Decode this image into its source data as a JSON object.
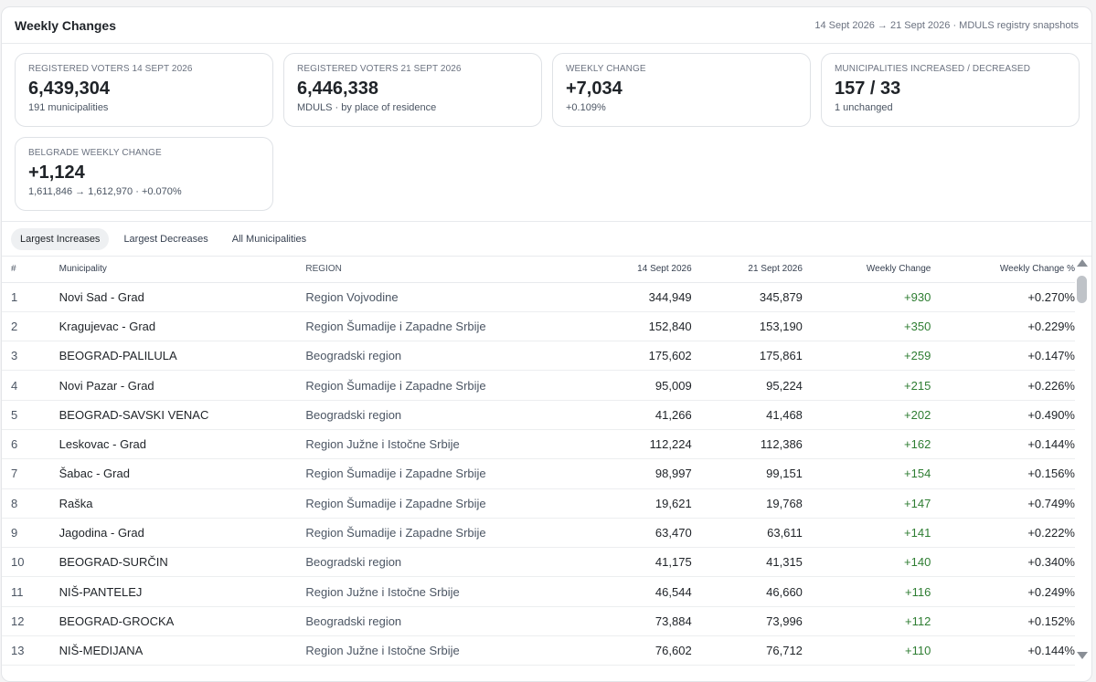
{
  "header": {
    "title": "Weekly Changes",
    "meta": "14 Sept 2026 → 21 Sept 2026 · MDULS registry snapshots"
  },
  "cards": [
    {
      "label": "REGISTERED VOTERS 14 SEPT 2026",
      "value": "6,439,304",
      "sub": "191 municipalities"
    },
    {
      "label": "REGISTERED VOTERS 21 SEPT 2026",
      "value": "6,446,338",
      "sub": "MDULS · by place of residence"
    },
    {
      "label": "WEEKLY CHANGE",
      "value": "+7,034",
      "sub": "+0.109%"
    },
    {
      "label": "MUNICIPALITIES INCREASED / DECREASED",
      "value": "157 / 33",
      "sub": "1 unchanged"
    },
    {
      "label": "BELGRADE WEEKLY CHANGE",
      "value": "+1,124",
      "sub": "1,611,846 → 1,612,970 · +0.070%"
    }
  ],
  "tabs": {
    "increases": "Largest Increases",
    "decreases": "Largest Decreases",
    "all": "All Municipalities"
  },
  "table": {
    "headers": {
      "rank": "#",
      "municipality": "Municipality",
      "region": "REGION",
      "date1": "14 Sept 2026",
      "date2": "21 Sept 2026",
      "weekly_change": "Weekly Change",
      "weekly_change_pct": "Weekly Change %"
    },
    "rows": [
      {
        "rank": "1",
        "municipality": "Novi Sad - Grad",
        "region": "Region Vojvodine",
        "d1": "344,949",
        "d2": "345,879",
        "wc": "+930",
        "wp": "+0.270%"
      },
      {
        "rank": "2",
        "municipality": "Kragujevac - Grad",
        "region": "Region Šumadije i Zapadne Srbije",
        "d1": "152,840",
        "d2": "153,190",
        "wc": "+350",
        "wp": "+0.229%"
      },
      {
        "rank": "3",
        "municipality": "BEOGRAD-PALILULA",
        "region": "Beogradski region",
        "d1": "175,602",
        "d2": "175,861",
        "wc": "+259",
        "wp": "+0.147%"
      },
      {
        "rank": "4",
        "municipality": "Novi Pazar - Grad",
        "region": "Region Šumadije i Zapadne Srbije",
        "d1": "95,009",
        "d2": "95,224",
        "wc": "+215",
        "wp": "+0.226%"
      },
      {
        "rank": "5",
        "municipality": "BEOGRAD-SAVSKI VENAC",
        "region": "Beogradski region",
        "d1": "41,266",
        "d2": "41,468",
        "wc": "+202",
        "wp": "+0.490%"
      },
      {
        "rank": "6",
        "municipality": "Leskovac - Grad",
        "region": "Region Južne i Istočne Srbije",
        "d1": "112,224",
        "d2": "112,386",
        "wc": "+162",
        "wp": "+0.144%"
      },
      {
        "rank": "7",
        "municipality": "Šabac - Grad",
        "region": "Region Šumadije i Zapadne Srbije",
        "d1": "98,997",
        "d2": "99,151",
        "wc": "+154",
        "wp": "+0.156%"
      },
      {
        "rank": "8",
        "municipality": "Raška",
        "region": "Region Šumadije i Zapadne Srbije",
        "d1": "19,621",
        "d2": "19,768",
        "wc": "+147",
        "wp": "+0.749%"
      },
      {
        "rank": "9",
        "municipality": "Jagodina - Grad",
        "region": "Region Šumadije i Zapadne Srbije",
        "d1": "63,470",
        "d2": "63,611",
        "wc": "+141",
        "wp": "+0.222%"
      },
      {
        "rank": "10",
        "municipality": "BEOGRAD-SURČIN",
        "region": "Beogradski region",
        "d1": "41,175",
        "d2": "41,315",
        "wc": "+140",
        "wp": "+0.340%"
      },
      {
        "rank": "11",
        "municipality": "NIŠ-PANTELEJ",
        "region": "Region Južne i Istočne Srbije",
        "d1": "46,544",
        "d2": "46,660",
        "wc": "+116",
        "wp": "+0.249%"
      },
      {
        "rank": "12",
        "municipality": "BEOGRAD-GROCKA",
        "region": "Beogradski region",
        "d1": "73,884",
        "d2": "73,996",
        "wc": "+112",
        "wp": "+0.152%"
      },
      {
        "rank": "13",
        "municipality": "NIŠ-MEDIJANA",
        "region": "Region Južne i Istočne Srbije",
        "d1": "76,602",
        "d2": "76,712",
        "wc": "+110",
        "wp": "+0.144%"
      }
    ]
  },
  "colors": {
    "positive": "#2e7d32",
    "active_tab_bg": "#eef0f2"
  }
}
